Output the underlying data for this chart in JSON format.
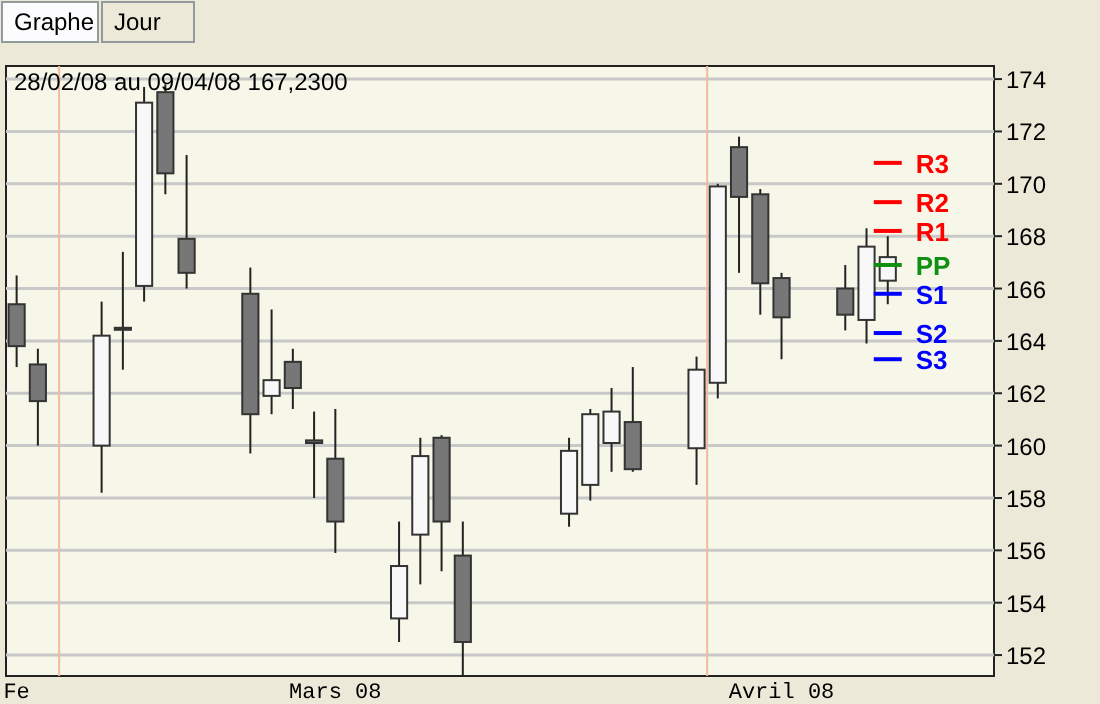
{
  "chart_data": {
    "type": "candlestick",
    "title": "28/02/08 au 09/04/08  167,2300",
    "annotations": [
      "Graphe",
      "Jour"
    ],
    "x": [
      "2008-02-28",
      "2008-02-29",
      "2008-03-03",
      "2008-03-04",
      "2008-03-05",
      "2008-03-06",
      "2008-03-07",
      "2008-03-10",
      "2008-03-11",
      "2008-03-12",
      "2008-03-13",
      "2008-03-14",
      "2008-03-17",
      "2008-03-18",
      "2008-03-19",
      "2008-03-20",
      "2008-03-25",
      "2008-03-26",
      "2008-03-27",
      "2008-03-28",
      "2008-03-31",
      "2008-04-01",
      "2008-04-02",
      "2008-04-03",
      "2008-04-04",
      "2008-04-07",
      "2008-04-08",
      "2008-04-09"
    ],
    "ohlc": [
      [
        165.4,
        166.5,
        163.0,
        163.8
      ],
      [
        163.1,
        163.7,
        160.0,
        161.7
      ],
      [
        160.0,
        165.5,
        158.2,
        164.2
      ],
      [
        164.5,
        167.4,
        162.9,
        164.5
      ],
      [
        166.1,
        173.7,
        165.5,
        173.1
      ],
      [
        173.5,
        173.8,
        169.6,
        170.4
      ],
      [
        167.9,
        171.1,
        166.0,
        166.6
      ],
      [
        165.8,
        166.8,
        159.7,
        161.2
      ],
      [
        161.9,
        165.2,
        161.2,
        162.5
      ],
      [
        163.2,
        163.7,
        161.4,
        162.2
      ],
      [
        160.2,
        161.3,
        158.0,
        160.1
      ],
      [
        159.5,
        161.4,
        155.9,
        157.1
      ],
      [
        153.4,
        157.1,
        152.5,
        155.4
      ],
      [
        156.6,
        160.3,
        154.7,
        159.6
      ],
      [
        160.3,
        160.4,
        155.2,
        157.1
      ],
      [
        155.8,
        157.1,
        151.2,
        152.5
      ],
      [
        157.4,
        160.3,
        156.9,
        159.8
      ],
      [
        158.5,
        161.4,
        157.9,
        161.2
      ],
      [
        160.1,
        162.2,
        159.0,
        161.3
      ],
      [
        160.9,
        163.0,
        159.0,
        159.1
      ],
      [
        159.9,
        163.4,
        158.5,
        162.9
      ],
      [
        162.4,
        170.0,
        161.8,
        169.9
      ],
      [
        171.4,
        171.8,
        166.6,
        169.5
      ],
      [
        169.6,
        169.8,
        165.0,
        166.2
      ],
      [
        166.4,
        166.6,
        163.3,
        164.9
      ],
      [
        166.0,
        166.9,
        164.4,
        165.0
      ],
      [
        164.8,
        168.3,
        163.9,
        167.6
      ],
      [
        166.3,
        168.0,
        165.4,
        167.2
      ]
    ],
    "xlim": [
      "2008-02-27T12:00",
      "2008-04-14"
    ],
    "xticks": [
      {
        "value": "2008-02-28",
        "label": "Fe"
      },
      {
        "value": "2008-03-14",
        "label": "Mars 08"
      },
      {
        "value": "2008-04-04",
        "label": "Avril 08"
      }
    ],
    "ylim": [
      151.2,
      174.5
    ],
    "yticks": [
      152,
      154,
      156,
      158,
      160,
      162,
      164,
      166,
      168,
      170,
      172,
      174
    ],
    "grid": "y",
    "ref_lines": [
      {
        "axis": "y",
        "value": 170.8,
        "label": "R3",
        "color": "#ff0000"
      },
      {
        "axis": "y",
        "value": 169.3,
        "label": "R2",
        "color": "#ff0000"
      },
      {
        "axis": "y",
        "value": 168.2,
        "label": "R1",
        "color": "#ff0000"
      },
      {
        "axis": "y",
        "value": 166.9,
        "label": "PP",
        "color": "#109010"
      },
      {
        "axis": "y",
        "value": 165.8,
        "label": "S1",
        "color": "#0000ff"
      },
      {
        "axis": "y",
        "value": 164.3,
        "label": "S2",
        "color": "#0000ff"
      },
      {
        "axis": "y",
        "value": 163.3,
        "label": "S3",
        "color": "#0000ff"
      },
      {
        "axis": "x",
        "value": "2008-03-01",
        "color": "#f5b8a0"
      },
      {
        "axis": "x",
        "value": "2008-03-31T12:00",
        "color": "#f5b8a0"
      }
    ]
  }
}
